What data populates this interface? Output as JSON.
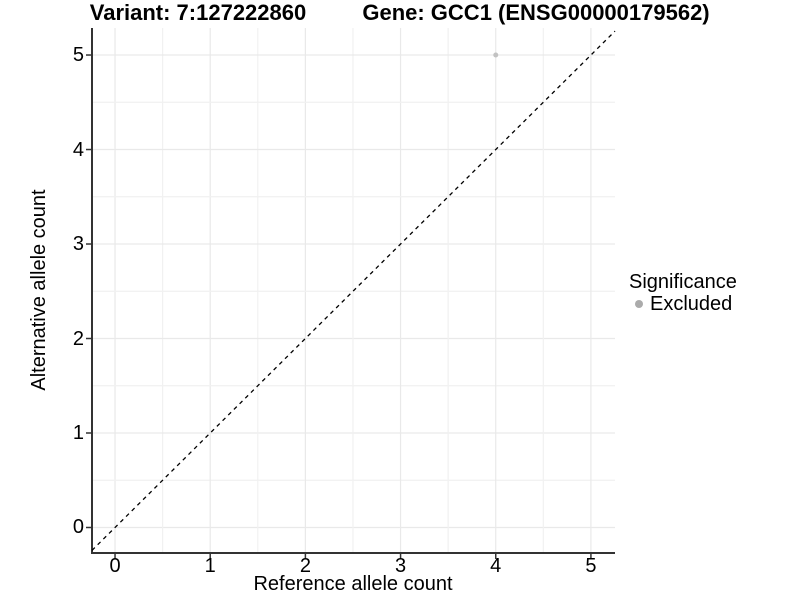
{
  "header": {
    "title_variant": "Variant: 7:127222860",
    "title_gene": "Gene: GCC1 (ENSG00000179562)"
  },
  "chart_data": {
    "type": "scatter",
    "xlabel": "Reference allele count",
    "ylabel": "Alternative allele count",
    "x_ticks": [
      "0",
      "1",
      "2",
      "3",
      "4",
      "5"
    ],
    "x_tick_values": [
      0,
      1,
      2,
      3,
      4,
      5
    ],
    "y_ticks": [
      "0",
      "1",
      "2",
      "3",
      "4",
      "5"
    ],
    "y_tick_values": [
      0,
      1,
      2,
      3,
      4,
      5
    ],
    "xlim": [
      -0.242,
      5.253
    ],
    "ylim": [
      -0.27,
      5.286
    ],
    "grid": "on",
    "grid_minor_step": 0.5,
    "points": [
      {
        "x": 4,
        "y": 5,
        "series": "Excluded",
        "color": "#c2c2c2",
        "radius": 2.5
      }
    ],
    "identity_line": {
      "type": "y=x",
      "style": "dashed",
      "color": "#000000"
    },
    "legend_position": "right"
  },
  "legend": {
    "title": "Significance",
    "entries": [
      {
        "label": "Excluded",
        "swatch_color": "#ababab"
      }
    ]
  },
  "colors": {
    "background": "#ffffff",
    "axis_line": "#333333",
    "grid_major": "#e9e9e9",
    "grid_minor": "#f1f1f1",
    "text": "#000000"
  }
}
